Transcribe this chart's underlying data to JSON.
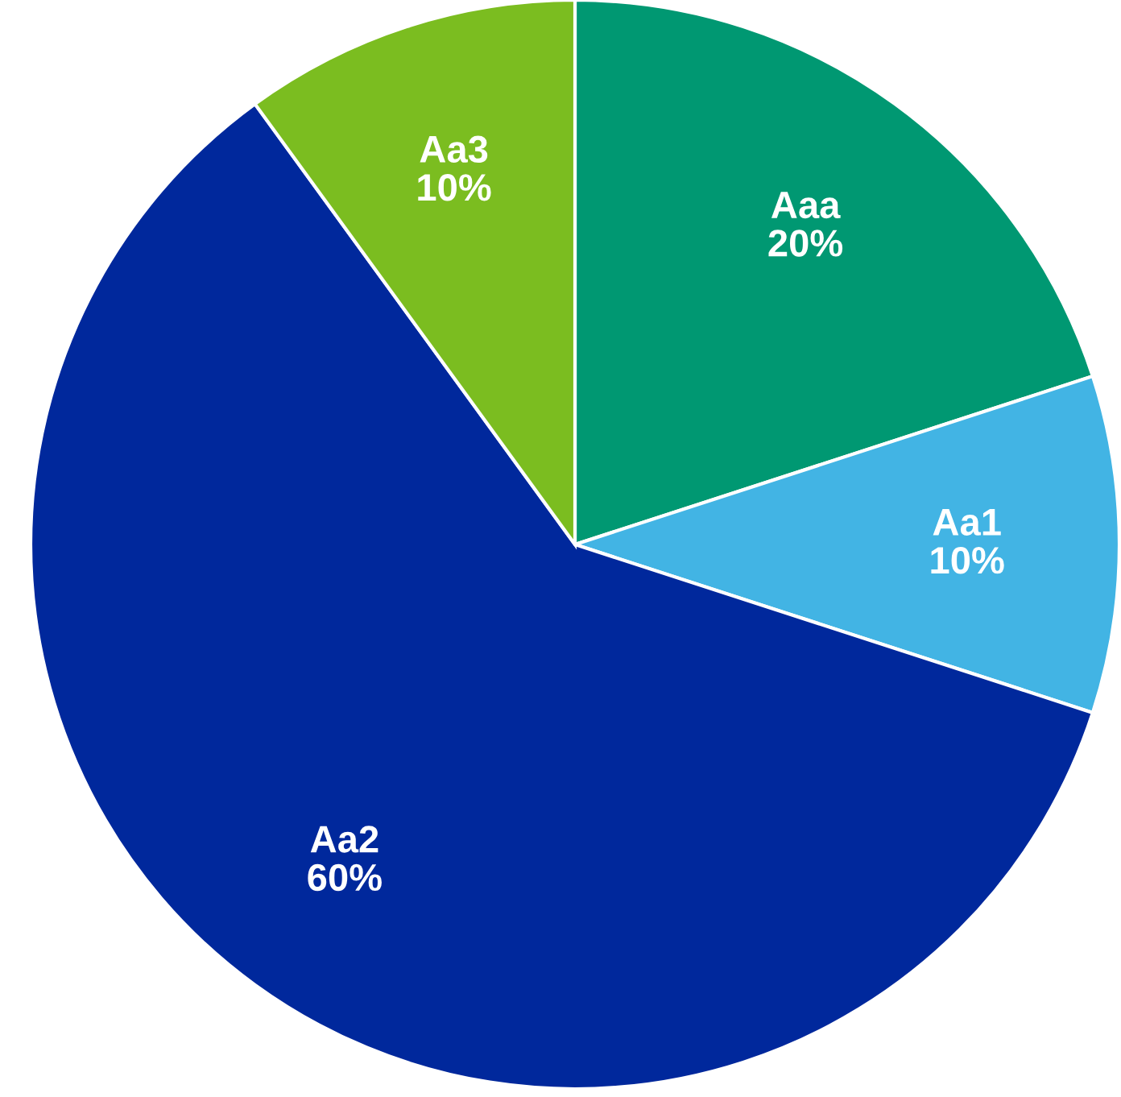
{
  "chart_data": {
    "type": "pie",
    "categories": [
      "Aaa",
      "Aa1",
      "Aa2",
      "Aa3"
    ],
    "values": [
      20,
      10,
      60,
      10
    ],
    "colors": [
      "#009872",
      "#42b4e4",
      "#00289c",
      "#7bbd20"
    ],
    "value_labels": [
      "20%",
      "10%",
      "60%",
      "10%"
    ]
  }
}
